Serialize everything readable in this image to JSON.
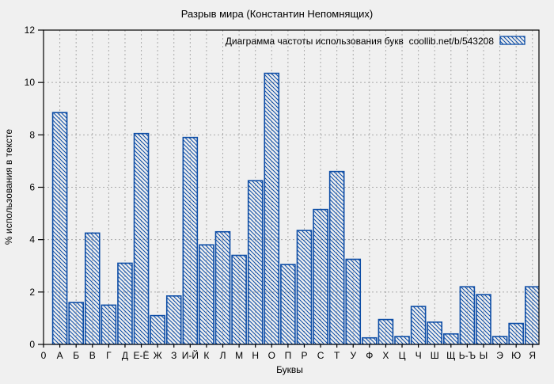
{
  "page": {
    "title": "Разрыв мира (Константин Непомнящих)"
  },
  "legend": {
    "label": "Диаграмма частоты использования букв  coollib.net/b/543208",
    "swatch": "blue-diagonal-hatch"
  },
  "colors": {
    "bar": "#0d4da6",
    "bar_fill": "#ffffff",
    "grid": "#a9a9a9",
    "frame": "#000000",
    "text": "#000000",
    "legend_text": "#15154a",
    "background": "#f0f0f0"
  },
  "chart_data": {
    "type": "bar",
    "title": "Разрыв мира (Константин Непомнящих)",
    "legend": "Диаграмма частоты использования букв  coollib.net/b/543208",
    "xlabel": "Буквы",
    "ylabel": "% использования в тексте",
    "origin_label": "0",
    "ylim": [
      0,
      12
    ],
    "yticks": [
      0,
      2,
      4,
      6,
      8,
      10,
      12
    ],
    "grid": true,
    "legend_position": "top-right",
    "hatch": "backslash-diagonal",
    "categories": [
      "А",
      "Б",
      "В",
      "Г",
      "Д",
      "Е-Ё",
      "Ж",
      "З",
      "И-Й",
      "К",
      "Л",
      "М",
      "Н",
      "О",
      "П",
      "Р",
      "С",
      "Т",
      "У",
      "Ф",
      "Х",
      "Ц",
      "Ч",
      "Ш",
      "Щ",
      "Ь-Ъ",
      "Ы",
      "Э",
      "Ю",
      "Я"
    ],
    "values": [
      8.85,
      1.6,
      4.25,
      1.5,
      3.1,
      8.05,
      1.1,
      1.85,
      7.9,
      3.8,
      4.3,
      3.4,
      6.25,
      10.35,
      3.05,
      4.35,
      5.15,
      6.6,
      3.25,
      0.25,
      0.95,
      0.3,
      1.45,
      0.85,
      0.4,
      2.2,
      1.9,
      0.3,
      0.8,
      2.2
    ]
  }
}
